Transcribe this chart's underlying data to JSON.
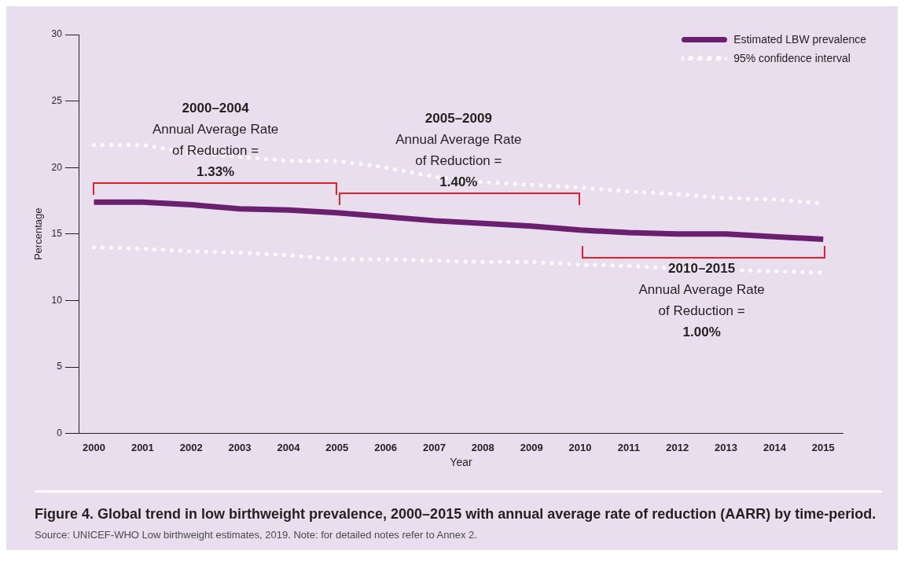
{
  "chart_data": {
    "type": "line",
    "title": "Figure 4. Global trend in low birthweight prevalence, 2000–2015 with annual average rate of reduction (AARR) by time-period.",
    "xlabel": "Year",
    "ylabel": "Percentage",
    "x": [
      2000,
      2001,
      2002,
      2003,
      2004,
      2005,
      2006,
      2007,
      2008,
      2009,
      2010,
      2011,
      2012,
      2013,
      2014,
      2015
    ],
    "series": [
      {
        "name": "Estimated LBW prevalence",
        "color": "#6b1f6f",
        "line_style": "solid",
        "values": [
          17.4,
          17.4,
          17.2,
          16.9,
          16.8,
          16.6,
          16.3,
          16.0,
          15.8,
          15.6,
          15.3,
          15.1,
          15.0,
          15.0,
          14.8,
          14.6
        ]
      },
      {
        "name": "95% confidence interval",
        "color": "#ffffff",
        "line_style": "dotted",
        "values": [
          21.7,
          21.7,
          21.1,
          20.8,
          20.5,
          20.5,
          20.0,
          19.3,
          18.9,
          18.7,
          18.5,
          18.2,
          18.0,
          17.7,
          17.6,
          17.3
        ]
      },
      {
        "color": "#ffffff",
        "line_style": "dotted",
        "values": [
          14.0,
          13.9,
          13.7,
          13.6,
          13.4,
          13.1,
          13.1,
          13.0,
          12.9,
          12.9,
          12.7,
          12.6,
          12.4,
          12.3,
          12.2,
          12.1
        ]
      }
    ],
    "xlim": [
      1999.7,
      2015.4
    ],
    "xticks": [
      2000,
      2001,
      2002,
      2003,
      2004,
      2005,
      2006,
      2007,
      2008,
      2009,
      2010,
      2011,
      2012,
      2013,
      2014,
      2015
    ],
    "ylim": [
      0,
      30
    ],
    "yticks": [
      0,
      5,
      10,
      15,
      20,
      25,
      30
    ],
    "grid": false,
    "legend": "top right",
    "marker": "none",
    "annotations": [
      "2000–2004\nAnnual Average Rate\nof Reduction =\n1.33%",
      "2005–2009\nAnnual Average Rate\nof Reduction =\n1.40%",
      "2010–2015\nAnnual Average Rate\nof Reduction =\n1.00%",
      "Source: UNICEF-WHO Low birthweight estimates, 2019. Note: for detailed notes refer to Annex 2."
    ]
  }
}
